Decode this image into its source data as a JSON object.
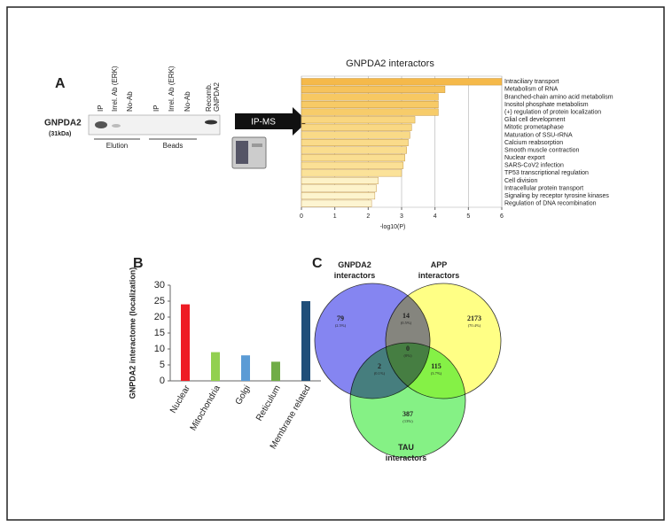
{
  "blot": {
    "label": "A",
    "protein": "GNPDA2",
    "size": "(31kDa)",
    "lanes": [
      "IP",
      "Irrel. Ab (ERK)",
      "No-Ab",
      "IP",
      "Irrel. Ab (ERK)",
      "No-Ab",
      "Recomb.",
      "GNPDA2"
    ],
    "groups": [
      "Elution",
      "Beads"
    ],
    "arrow": "IP-MS"
  },
  "chart_data": [
    {
      "type": "hbar",
      "title": "GNPDA2 interactors",
      "xlabel": "-log10(P)",
      "categories": [
        "Intraciliary transport",
        "Metabolism of RNA",
        "Branched-chain amino acid metabolism",
        "Inositol phosphate metabolism",
        "(+) regulation of protein localization",
        "Glial cell development",
        "Mitotic prometaphase",
        "Maturation of SSU-rRNA",
        "Calcium reabsorption",
        "Smooth muscle contraction",
        "Nuclear export",
        "SARS-CoV2 infection",
        "TP53 transcriptional regulation",
        "Cell division",
        "Intracellular protein transport",
        "Signaling by receptor tyrosine kinases",
        "Regulation of DNA recombination"
      ],
      "values": [
        6.0,
        4.3,
        4.1,
        4.1,
        4.1,
        3.4,
        3.3,
        3.25,
        3.2,
        3.15,
        3.1,
        3.05,
        3.0,
        2.3,
        2.25,
        2.2,
        2.1
      ],
      "colors": [
        "#f5b94a",
        "#f6c35c",
        "#f7c862",
        "#f7ca66",
        "#f7cc6a",
        "#f9d67f",
        "#f9d883",
        "#f9da87",
        "#fadb8a",
        "#fadd8e",
        "#fade91",
        "#fbe095",
        "#fbe299",
        "#fdf2c8",
        "#fdf3cb",
        "#fdf4ce",
        "#fdf5d2"
      ],
      "xlim": [
        0,
        6
      ],
      "xticks": [
        0,
        1,
        2,
        3,
        4,
        5,
        6
      ],
      "grid": true
    },
    {
      "type": "bar",
      "label": "B",
      "ylabel": "GNPDA2 interactome (localization)",
      "categories": [
        "Nuclear",
        "Mitochondria",
        "Golgi",
        "Reticulum",
        "Membrane related"
      ],
      "values": [
        24,
        9,
        8,
        6,
        25
      ],
      "colors": [
        "#ee1c24",
        "#92d050",
        "#5b9bd5",
        "#70ad47",
        "#1f4e79"
      ],
      "ylim": [
        0,
        30
      ],
      "yticks": [
        0,
        5,
        10,
        15,
        20,
        25,
        30
      ]
    },
    {
      "type": "venn",
      "label": "C",
      "sets": [
        "GNPDA2 interactors",
        "APP interactors",
        "TAU interactors"
      ],
      "set_colors": [
        "#6666ee",
        "#ffff66",
        "#66ee66"
      ],
      "values": [
        79,
        14,
        2173,
        0,
        2,
        115,
        387
      ],
      "percent_labels": [
        "(2.5%)",
        "(0.5%)",
        "(70.4%)",
        "(0%)",
        "(0.1%)",
        "(3.7%)",
        "(13%)"
      ]
    }
  ]
}
